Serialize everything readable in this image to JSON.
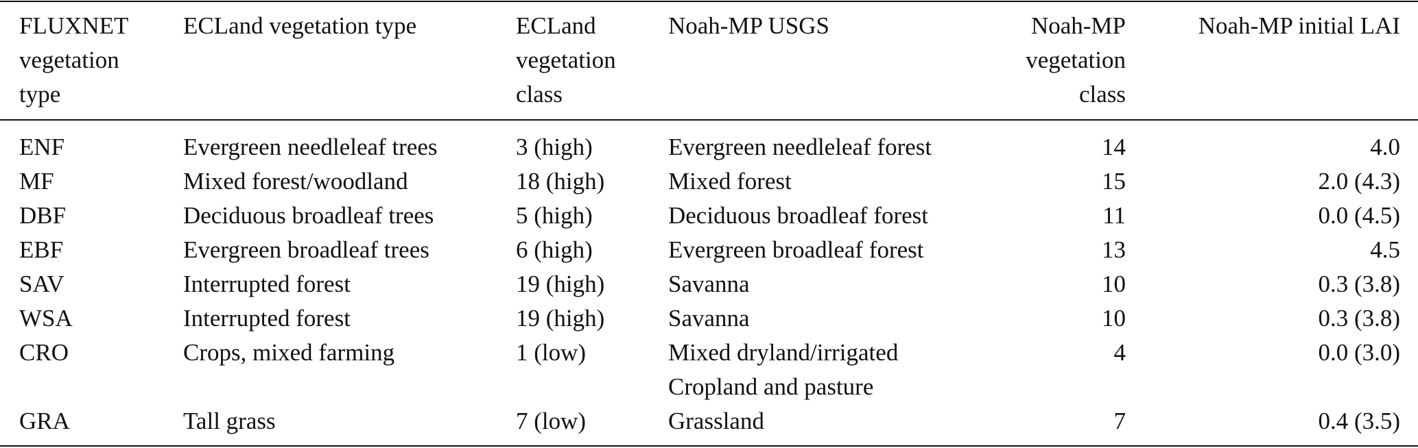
{
  "table": {
    "headers": [
      [
        "FLUXNET",
        "vegetation",
        "type"
      ],
      [
        "ECLand vegetation type"
      ],
      [
        "ECLand",
        "vegetation",
        "class"
      ],
      [
        "Noah-MP USGS"
      ],
      [
        "Noah-MP",
        "vegetation",
        "class"
      ],
      [
        "Noah-MP initial LAI"
      ]
    ],
    "rows": [
      [
        "ENF",
        "Evergreen needleleaf trees",
        "3 (high)",
        "Evergreen needleleaf forest",
        "14",
        "4.0"
      ],
      [
        "MF",
        "Mixed forest/woodland",
        "18 (high)",
        "Mixed forest",
        "15",
        "2.0 (4.3)"
      ],
      [
        "DBF",
        "Deciduous broadleaf trees",
        "5 (high)",
        "Deciduous broadleaf forest",
        "11",
        "0.0 (4.5)"
      ],
      [
        "EBF",
        "Evergreen broadleaf trees",
        "6 (high)",
        "Evergreen broadleaf forest",
        "13",
        "4.5"
      ],
      [
        "SAV",
        "Interrupted forest",
        "19 (high)",
        "Savanna",
        "10",
        "0.3 (3.8)"
      ],
      [
        "WSA",
        "Interrupted forest",
        "19 (high)",
        "Savanna",
        "10",
        "0.3 (3.8)"
      ],
      [
        "CRO",
        "Crops, mixed farming",
        "1 (low)",
        "Mixed dryland/irrigated",
        "4",
        "0.0 (3.0)"
      ],
      [
        "",
        "",
        "",
        "Cropland and pasture",
        "",
        ""
      ],
      [
        "GRA",
        "Tall grass",
        "7 (low)",
        "Grassland",
        "7",
        "0.4 (3.5)"
      ]
    ]
  }
}
